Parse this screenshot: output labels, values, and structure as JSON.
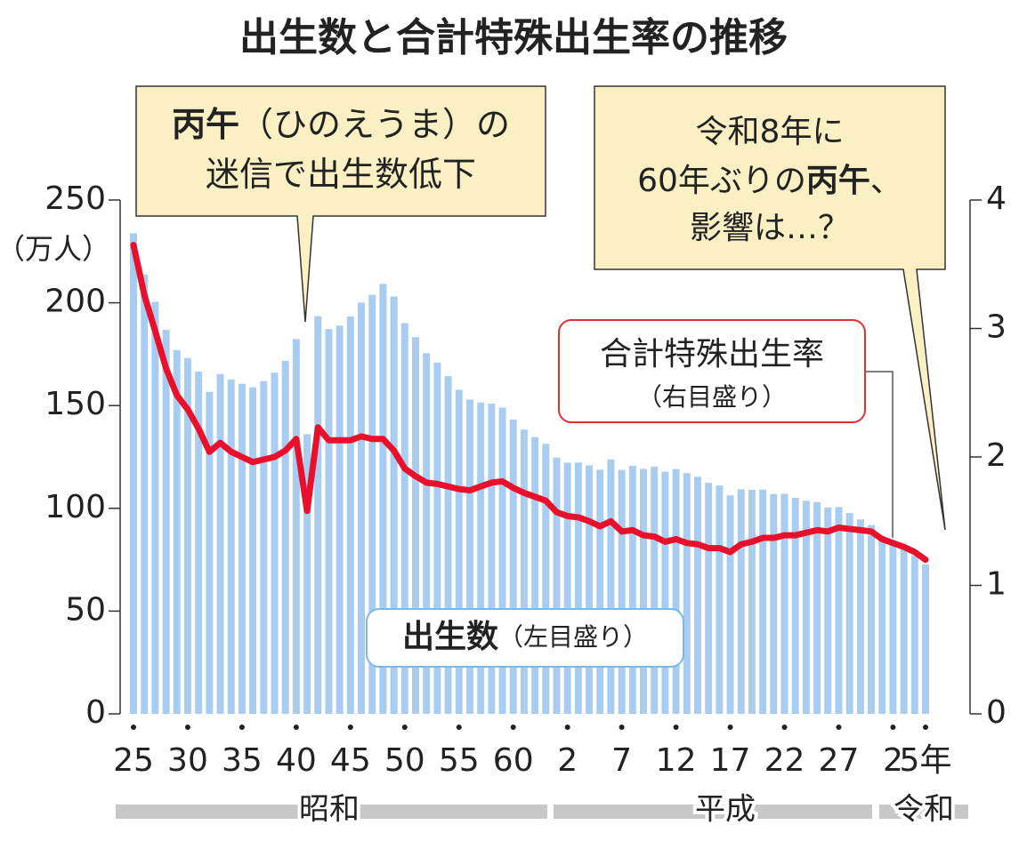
{
  "chart_data": {
    "type": "bar",
    "title": "出生数と合計特殊出生率の推移",
    "ylabel": "（万人）",
    "categories": [
      "25",
      null,
      null,
      null,
      null,
      "30",
      null,
      null,
      null,
      null,
      "35",
      null,
      null,
      null,
      null,
      "40",
      null,
      null,
      null,
      null,
      "45",
      null,
      null,
      null,
      null,
      "50",
      null,
      null,
      null,
      null,
      "55",
      null,
      null,
      null,
      null,
      "60",
      null,
      null,
      null,
      null,
      "2",
      null,
      null,
      null,
      null,
      "7",
      null,
      null,
      null,
      null,
      "12",
      null,
      null,
      null,
      null,
      "17",
      null,
      null,
      null,
      null,
      "22",
      null,
      null,
      null,
      null,
      "27",
      null,
      null,
      null,
      null,
      "2",
      null,
      null,
      "5年"
    ],
    "eras": [
      "昭和",
      "平成",
      "令和"
    ],
    "ylim": [
      0,
      250
    ],
    "yticks": [
      0,
      50,
      100,
      150,
      200,
      250
    ],
    "y2lim": [
      0,
      4
    ],
    "y2ticks": [
      0,
      1,
      2,
      3,
      4
    ],
    "series": [
      {
        "name": "出生数",
        "type": "bar",
        "axis_note": "（左目盛り）",
        "color": "#a9cdf0",
        "values": [
          233.8,
          213.8,
          200.5,
          186.8,
          177.0,
          173.1,
          166.5,
          156.7,
          165.3,
          162.6,
          160.6,
          158.9,
          161.9,
          166.0,
          171.7,
          182.4,
          136.1,
          193.5,
          187.2,
          188.9,
          193.4,
          200.1,
          203.9,
          209.2,
          203.0,
          190.1,
          183.3,
          175.5,
          170.9,
          164.3,
          157.7,
          152.9,
          151.5,
          150.9,
          149.0,
          143.2,
          138.3,
          134.7,
          131.4,
          124.7,
          122.2,
          122.3,
          120.9,
          118.8,
          123.8,
          118.7,
          120.7,
          119.2,
          120.3,
          117.8,
          119.1,
          117.1,
          115.4,
          112.4,
          111.1,
          106.3,
          109.3,
          109.0,
          109.1,
          107.0,
          107.1,
          105.1,
          103.7,
          103.0,
          100.4,
          100.6,
          97.7,
          94.6,
          91.8,
          86.5,
          84.1,
          81.2,
          77.1,
          72.7
        ]
      },
      {
        "name": "合計特殊出生率",
        "type": "line",
        "axis": "y2",
        "axis_note": "（右目盛り）",
        "color": "#e8102a",
        "values": [
          3.65,
          3.26,
          2.98,
          2.69,
          2.48,
          2.37,
          2.22,
          2.04,
          2.11,
          2.04,
          2.0,
          1.96,
          1.98,
          2.0,
          2.05,
          2.14,
          1.58,
          2.23,
          2.13,
          2.13,
          2.13,
          2.16,
          2.14,
          2.14,
          2.05,
          1.91,
          1.85,
          1.8,
          1.79,
          1.77,
          1.75,
          1.74,
          1.77,
          1.8,
          1.81,
          1.76,
          1.72,
          1.69,
          1.66,
          1.57,
          1.54,
          1.53,
          1.5,
          1.46,
          1.5,
          1.42,
          1.43,
          1.39,
          1.38,
          1.34,
          1.36,
          1.33,
          1.32,
          1.29,
          1.29,
          1.26,
          1.32,
          1.34,
          1.37,
          1.37,
          1.39,
          1.39,
          1.41,
          1.43,
          1.42,
          1.45,
          1.44,
          1.43,
          1.42,
          1.36,
          1.33,
          1.3,
          1.26,
          1.2
        ]
      }
    ],
    "annotations": [
      {
        "lines": [
          [
            "丙午",
            "（ひのえうま）の"
          ],
          [
            "迷信で出生数低下"
          ]
        ]
      },
      {
        "lines": [
          [
            "令和8年に"
          ],
          [
            "60年ぶりの",
            "丙午",
            "、"
          ],
          [
            "影響は…？"
          ]
        ]
      }
    ]
  }
}
